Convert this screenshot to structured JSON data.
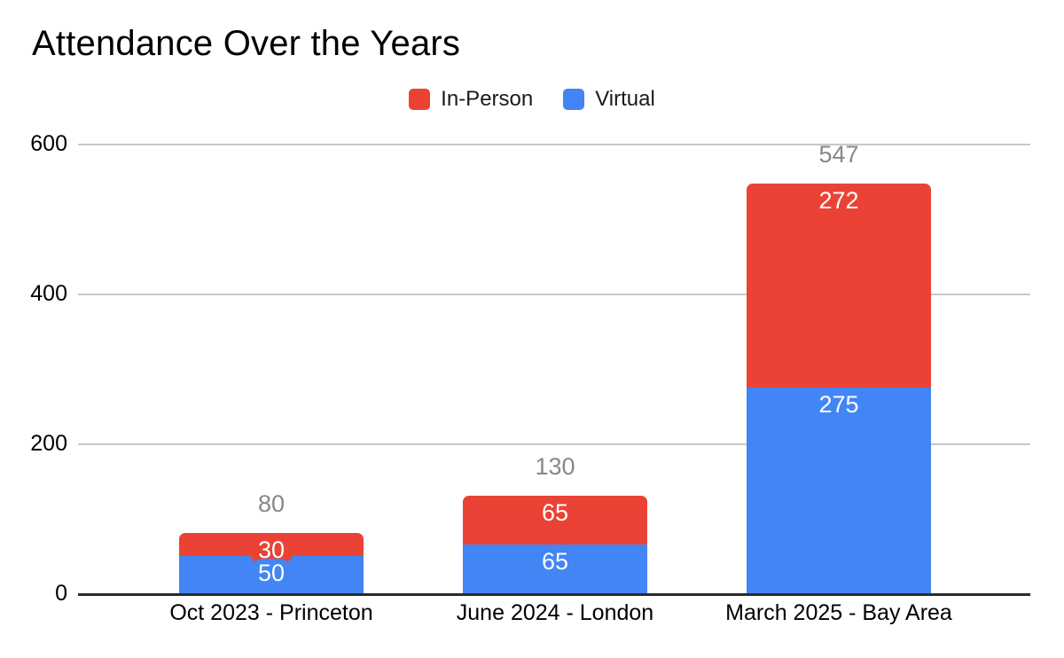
{
  "title": "Attendance Over the Years",
  "legend": [
    {
      "label": "In-Person",
      "color": "#EA4335"
    },
    {
      "label": "Virtual",
      "color": "#4285F4"
    }
  ],
  "chart_data": {
    "type": "bar",
    "stacked": true,
    "title": "Attendance Over the Years",
    "xlabel": "",
    "ylabel": "",
    "categories": [
      "Oct 2023 - Princeton",
      "June 2024 - London",
      "March 2025 - Bay Area"
    ],
    "series": [
      {
        "name": "Virtual",
        "color": "#4285F4",
        "values": [
          50,
          65,
          275
        ]
      },
      {
        "name": "In-Person",
        "color": "#EA4335",
        "values": [
          30,
          65,
          272
        ]
      }
    ],
    "totals": [
      80,
      130,
      547
    ],
    "yticks": [
      600,
      400,
      200,
      0
    ],
    "ylim": [
      0,
      600
    ],
    "grid": true,
    "legend_position": "top",
    "colors": {
      "total_label": "#888888",
      "gridline": "#c9c9c9",
      "axis_line": "#2b2b2b",
      "data_label_text": "#ffffff"
    }
  }
}
